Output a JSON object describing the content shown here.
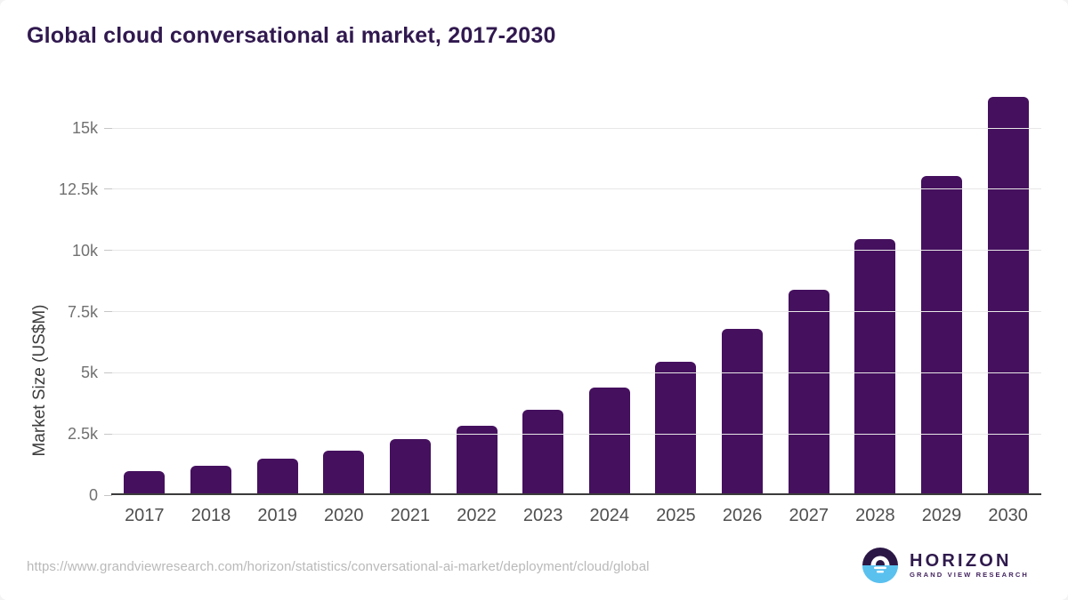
{
  "title": "Global cloud conversational ai market, 2017-2030",
  "chart_data": {
    "type": "bar",
    "title": "Global cloud conversational ai market, 2017-2030",
    "xlabel": "",
    "ylabel": "Market Size (US$M)",
    "categories": [
      "2017",
      "2018",
      "2019",
      "2020",
      "2021",
      "2022",
      "2023",
      "2024",
      "2025",
      "2026",
      "2027",
      "2028",
      "2029",
      "2030"
    ],
    "values": [
      900,
      1140,
      1430,
      1760,
      2230,
      2770,
      3430,
      4310,
      5370,
      6710,
      8310,
      10400,
      12970,
      16220
    ],
    "ylim": [
      0,
      16600
    ],
    "yticks": [
      {
        "value": 0,
        "label": "0"
      },
      {
        "value": 2500,
        "label": "2.5k"
      },
      {
        "value": 5000,
        "label": "5k"
      },
      {
        "value": 7500,
        "label": "7.5k"
      },
      {
        "value": 10000,
        "label": "10k"
      },
      {
        "value": 12500,
        "label": "12.5k"
      },
      {
        "value": 15000,
        "label": "15k"
      }
    ],
    "grid": "horizontal",
    "legend": "none",
    "bar_color": "#45105e"
  },
  "colors": {
    "title": "#31194f",
    "bar": "#45105e",
    "axis_line": "#3b3b3b",
    "gridline": "#e7e7e7",
    "y_tick_label": "#717171",
    "x_tick_label": "#4f4f4f",
    "source_url": "#b9b9b9",
    "logo_purple": "#2b1745",
    "logo_blue": "#5ac1ef"
  },
  "footer": {
    "source_url": "https://www.grandviewresearch.com/horizon/statistics/conversational-ai-market/deployment/cloud/global",
    "logo": {
      "title": "HORIZON",
      "subtitle": "GRAND VIEW RESEARCH"
    }
  }
}
